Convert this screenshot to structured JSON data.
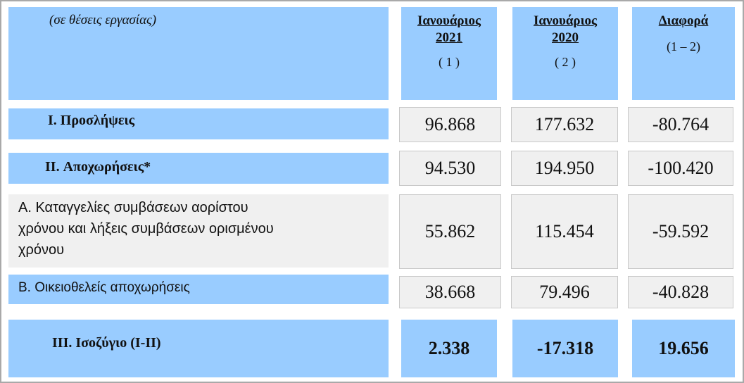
{
  "header": {
    "unit_note": "(σε θέσεις εργασίας)",
    "col1": {
      "title1": "Ιανουάριος",
      "title2": "2021",
      "sub": "( 1 )"
    },
    "col2": {
      "title1": "Ιανουάριος",
      "title2": "2020",
      "sub": "( 2 )"
    },
    "col3": {
      "title1": "Διαφορά",
      "sub": "(1 – 2)"
    }
  },
  "rows": [
    {
      "label": "I. Προσλήψεις",
      "v1": "96.868",
      "v2": "177.632",
      "v3": "-80.764"
    },
    {
      "label": "II. Αποχωρήσεις*",
      "v1": "94.530",
      "v2": "194.950",
      "v3": "-100.420"
    },
    {
      "label_lines": [
        "Α. Καταγγελίες συμβάσεων αορίστου",
        "χρόνου  και λήξεις συμβάσεων ορισμένου",
        "χρόνου"
      ],
      "v1": "55.862",
      "v2": "115.454",
      "v3": "-59.592"
    },
    {
      "label": "Β. Οικειοθελείς  αποχωρήσεις",
      "v1": "38.668",
      "v2": "79.496",
      "v3": "-40.828"
    },
    {
      "label": "III. Ισοζύγιο (I-II)",
      "v1": "2.338",
      "v2": "-17.318",
      "v3": "19.656"
    }
  ],
  "colors": {
    "blue": "#99ccff",
    "grey": "#f0f0f0"
  }
}
